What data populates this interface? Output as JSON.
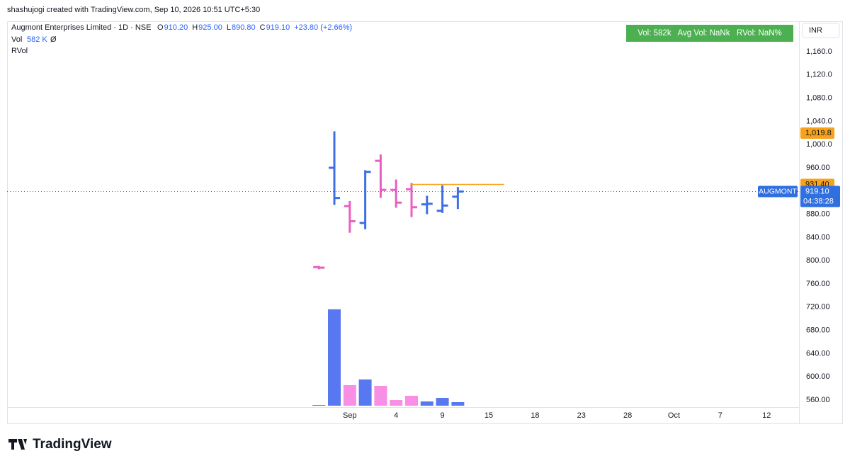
{
  "header": {
    "caption": "shashujogi created with TradingView.com, Sep 10, 2026 10:51 UTC+5:30",
    "logo": "TradingView"
  },
  "chart_data": {
    "type": "ohlc",
    "symbol": "Augmont Enterprises Limited · 1D · NSE",
    "ohlc_legend": [
      {
        "key": "O",
        "value": "910.20"
      },
      {
        "key": "H",
        "value": "925.00"
      },
      {
        "key": "L",
        "value": "890.80"
      },
      {
        "key": "C",
        "value": "919.10"
      }
    ],
    "change": "+23.80 (+2.66%)",
    "volume_legend": {
      "name": "Vol",
      "value": "582 K",
      "extra": "Ø"
    },
    "rvol_legend": "RVol",
    "stats_box": "Vol: 582k   Avg Vol: NaNk   RVol: NaN%",
    "currency": "INR",
    "x": [
      0,
      1,
      2,
      3,
      4,
      5,
      6,
      7,
      8,
      9
    ],
    "xlim": [
      -20.2,
      31.1
    ],
    "xticks": [
      {
        "value": 2,
        "label": "Sep"
      },
      {
        "value": 5,
        "label": "4"
      },
      {
        "value": 8,
        "label": "9"
      },
      {
        "value": 11,
        "label": "15"
      },
      {
        "value": 14,
        "label": "18"
      },
      {
        "value": 17,
        "label": "23"
      },
      {
        "value": 20,
        "label": "28"
      },
      {
        "value": 23,
        "label": "Oct"
      },
      {
        "value": 26,
        "label": "7"
      },
      {
        "value": 29,
        "label": "12"
      }
    ],
    "open": [
      789,
      960,
      894,
      865,
      972,
      922,
      923,
      897,
      886,
      910.2
    ],
    "high": [
      789,
      1021,
      901,
      954,
      981,
      938,
      932,
      910,
      928,
      925
    ],
    "low": [
      787,
      898,
      850,
      856,
      910,
      893,
      877,
      882,
      884,
      890.8
    ],
    "close": [
      788,
      908,
      868,
      953,
      922,
      900,
      892,
      898,
      895,
      919.1
    ],
    "colors": [
      "#e85fbf",
      "#3f6fe6",
      "#e85fbf",
      "#3f6fe6",
      "#e85fbf",
      "#e85fbf",
      "#e85fbf",
      "#3f6fe6",
      "#3f6fe6",
      "#3f6fe6"
    ],
    "volume": [
      116,
      15830,
      3375,
      4306,
      3259,
      931,
      1630,
      698,
      1280,
      582
    ],
    "volume_colors": [
      "#5878f2",
      "#5878f2",
      "#f98fe4",
      "#5878f2",
      "#f98fe4",
      "#f98fe4",
      "#f98fe4",
      "#5878f2",
      "#5878f2",
      "#5878f2"
    ],
    "volume_lim": [
      0,
      20000
    ],
    "ylim": [
      519.8,
      1212.4
    ],
    "yticks": [
      {
        "value": 560,
        "label": "560.00"
      },
      {
        "value": 600,
        "label": "600.00"
      },
      {
        "value": 640,
        "label": "640.00"
      },
      {
        "value": 680,
        "label": "680.00"
      },
      {
        "value": 720,
        "label": "720.00"
      },
      {
        "value": 760,
        "label": "760.00"
      },
      {
        "value": 800,
        "label": "800.00"
      },
      {
        "value": 840,
        "label": "840.00"
      },
      {
        "value": 880,
        "label": "880.00"
      },
      {
        "value": 960,
        "label": "960.00"
      },
      {
        "value": 1000,
        "label": "1,000.0"
      },
      {
        "value": 1040,
        "label": "1,040.0"
      },
      {
        "value": 1080,
        "label": "1,080.0"
      },
      {
        "value": 1120,
        "label": "1,120.0"
      },
      {
        "value": 1160,
        "label": "1,160.0"
      }
    ],
    "price_lines": [
      {
        "value": 1019.8,
        "label": "1,019.8",
        "color": "#f7a21b"
      },
      {
        "value": 931.4,
        "label": "931.40",
        "color": "#f7a21b",
        "from": 6,
        "to": 12
      }
    ],
    "last_price": {
      "value": 919.1,
      "label": "919.10",
      "symbol": "AUGMONT",
      "countdown": "04:38:28",
      "color": "#2f6fe0"
    }
  }
}
